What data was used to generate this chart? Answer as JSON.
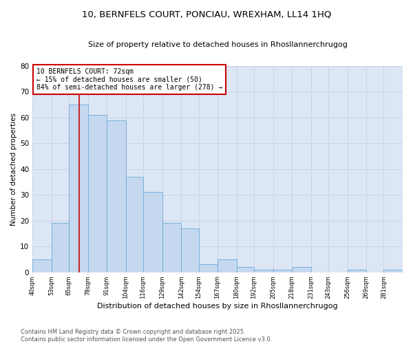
{
  "title_line1": "10, BERNFELS COURT, PONCIAU, WREXHAM, LL14 1HQ",
  "title_line2": "Size of property relative to detached houses in Rhosllannerchrugog",
  "xlabel": "Distribution of detached houses by size in Rhosllannerchrugog",
  "ylabel": "Number of detached properties",
  "footer": "Contains HM Land Registry data © Crown copyright and database right 2025.\nContains public sector information licensed under the Open Government Licence v3.0.",
  "annotation_title": "10 BERNFELS COURT: 72sqm",
  "annotation_line2": "← 15% of detached houses are smaller (50)",
  "annotation_line3": "84% of semi-detached houses are larger (278) →",
  "property_size": 72,
  "bar_color": "#c5d8f0",
  "bar_edge_color": "#6baad8",
  "redline_color": "#cc0000",
  "grid_color": "#c8d4e8",
  "background_color": "#dce6f5",
  "bins": [
    40,
    53,
    65,
    78,
    91,
    104,
    116,
    129,
    142,
    154,
    167,
    180,
    192,
    205,
    218,
    231,
    243,
    256,
    269,
    281,
    294
  ],
  "counts": [
    5,
    19,
    65,
    61,
    59,
    37,
    31,
    19,
    17,
    3,
    5,
    2,
    1,
    1,
    2,
    0,
    0,
    1,
    0,
    1
  ],
  "ylim": [
    0,
    80
  ],
  "yticks": [
    0,
    10,
    20,
    30,
    40,
    50,
    60,
    70,
    80
  ]
}
